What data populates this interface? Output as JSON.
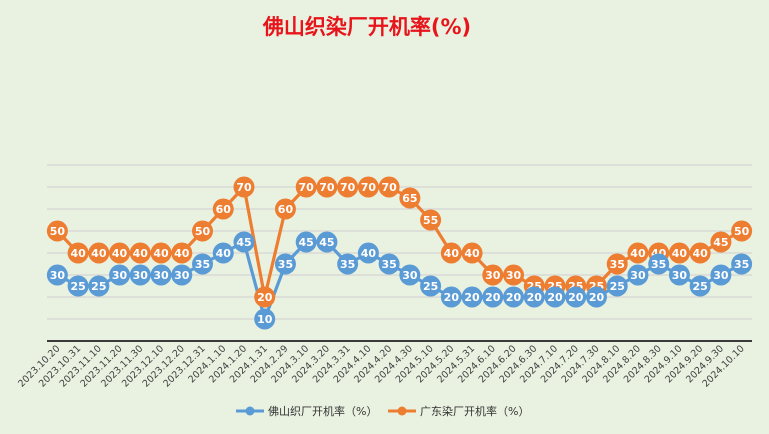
{
  "chart_data": {
    "type": "line",
    "title": "佛山织染厂开机率(%)",
    "xlabel": "",
    "ylabel": "",
    "ylim": [
      0,
      85
    ],
    "grid": true,
    "legend_position": "bottom",
    "categories": [
      "2023.10.20",
      "2023.10.31",
      "2023.11.10",
      "2023.11.20",
      "2023.11.30",
      "2023.12.10",
      "2023.12.20",
      "2023.12.31",
      "2024.1.10",
      "2024.1.20",
      "2024.1.31",
      "2024.2.29",
      "2024.3.10",
      "2024.3.20",
      "2024.3.31",
      "2024.4.10",
      "2024.4.20",
      "2024.4.30",
      "2024.5.10",
      "2024.5.20",
      "2024.5.31",
      "2024.6.10",
      "2024.6.20",
      "2024.6.30",
      "2024.7.10",
      "2024.7.20",
      "2024.7.30",
      "2024.8.10",
      "2024.8.20",
      "2024.8.30",
      "2024.9.10",
      "2024.9.20",
      "2024.9.30",
      "2024.10.10"
    ],
    "series": [
      {
        "name": "佛山织厂开机率（%）",
        "color": "#5b9bd5",
        "values": [
          30,
          25,
          25,
          30,
          30,
          30,
          30,
          35,
          40,
          45,
          10,
          35,
          45,
          45,
          35,
          40,
          35,
          30,
          25,
          20,
          20,
          20,
          20,
          20,
          20,
          20,
          20,
          25,
          30,
          35,
          30,
          25,
          30,
          35
        ]
      },
      {
        "name": "广东染厂开机率（%）",
        "color": "#ed7d31",
        "values": [
          50,
          40,
          40,
          40,
          40,
          40,
          40,
          50,
          60,
          70,
          20,
          60,
          70,
          70,
          70,
          70,
          70,
          65,
          55,
          40,
          40,
          30,
          30,
          25,
          25,
          25,
          25,
          35,
          40,
          40,
          40,
          40,
          45,
          50
        ]
      }
    ]
  }
}
